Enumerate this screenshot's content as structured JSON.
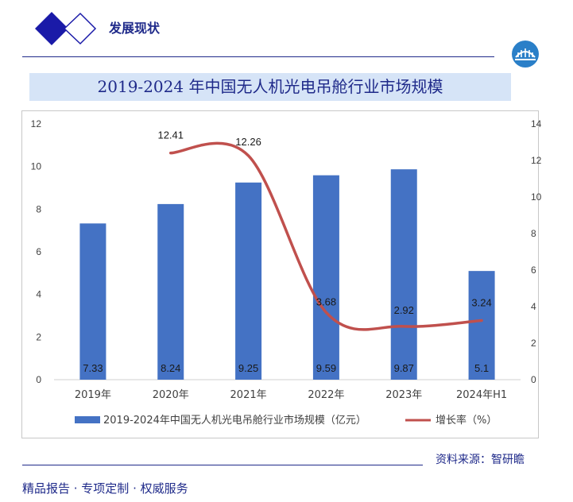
{
  "header": {
    "section_title": "发展现状"
  },
  "chart_data": {
    "type": "bar+line",
    "title": "2019-2024 年中国无人机光电吊舱行业市场规模",
    "categories": [
      "2019年",
      "2020年",
      "2021年",
      "2022年",
      "2023年",
      "2024年H1"
    ],
    "series": [
      {
        "name": "2019-2024年中国无人机光电吊舱行业市场规模（亿元）",
        "type": "bar",
        "axis": "left",
        "values": [
          7.33,
          8.24,
          9.25,
          9.59,
          9.87,
          5.1
        ],
        "labels": [
          "7.33",
          "8.24",
          "9.25",
          "9.59",
          "9.87",
          "5.1"
        ],
        "color": "#4472c4"
      },
      {
        "name": "增长率（%）",
        "type": "line",
        "axis": "right",
        "values": [
          null,
          12.41,
          12.26,
          3.68,
          2.92,
          3.24
        ],
        "labels": [
          "",
          "12.41",
          "12.26",
          "3.68",
          "2.92",
          "3.24"
        ],
        "color": "#c0504d"
      }
    ],
    "left_axis": {
      "ylim": [
        0,
        12
      ],
      "ticks": [
        "0",
        "2",
        "4",
        "6",
        "8",
        "10",
        "12"
      ]
    },
    "right_axis": {
      "ylim": [
        0,
        14
      ],
      "ticks": [
        "0",
        "2",
        "4",
        "6",
        "8",
        "10",
        "12",
        "14"
      ]
    },
    "legend": "bottom"
  },
  "source": "资料来源：智研瞻",
  "footer": "精品报告 · 专项定制 · 权威服务"
}
